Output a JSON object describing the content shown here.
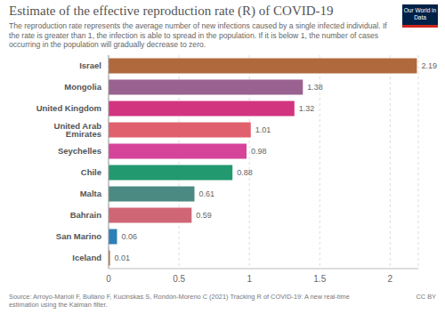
{
  "chart_data": {
    "type": "bar",
    "orientation": "horizontal",
    "title": "Estimate of the effective reproduction rate (R) of COVID-19",
    "subtitle": "The reproduction rate represents the average number of new infections caused by a single infected individual. If the rate is greater than 1, the infection is able to spread in the population. If it is below 1, the number of cases occurring in the population will gradually decrease to zero.",
    "source": "Source: Arroyo-Marioli F, Bullano F, Kucinskas S, Rondón-Moreno C (2021) Tracking R of COVID-19: A new real-time estimation using the Kalman filter.",
    "license": "CC BY",
    "logo": "Our World in Data",
    "categories": [
      "Israel",
      "Mongolia",
      "United Kingdom",
      "United Arab Emirates",
      "Seychelles",
      "Chile",
      "Malta",
      "Bahrain",
      "San Marino",
      "Iceland"
    ],
    "values": [
      2.19,
      1.38,
      1.32,
      1.01,
      0.98,
      0.88,
      0.61,
      0.59,
      0.06,
      0.01
    ],
    "colors": [
      "#b0693c",
      "#9a6290",
      "#d2347f",
      "#e1606d",
      "#d6449a",
      "#23996f",
      "#4a8a82",
      "#cf6676",
      "#2d7fb8",
      "#b9672f"
    ],
    "xlim": [
      0,
      2.2
    ],
    "xticks": [
      0,
      0.5,
      1,
      1.5,
      2
    ],
    "grid": true,
    "data_labels": true
  }
}
